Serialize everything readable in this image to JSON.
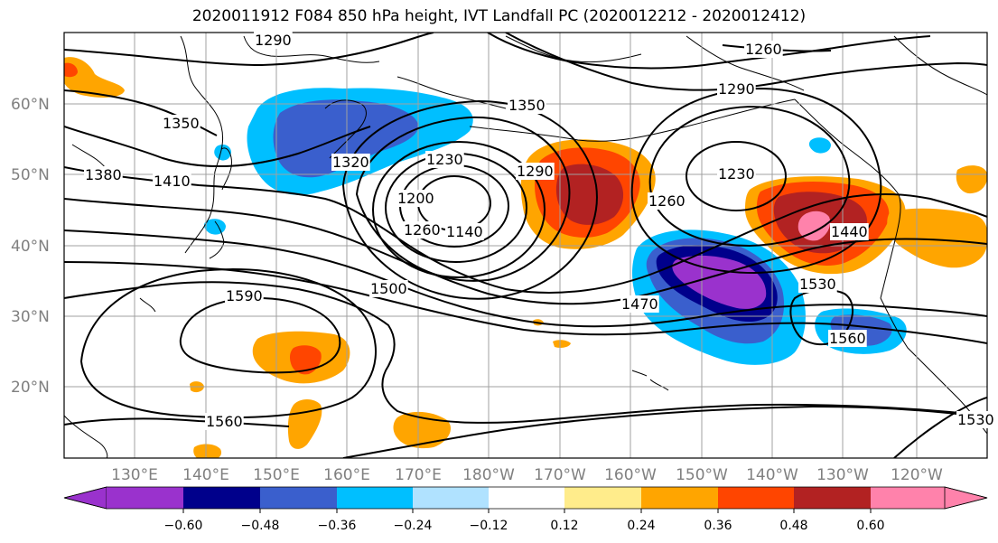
{
  "title": "2020011912 F084 850 hPa height, IVT Landfall PC (2020012212 - 2020012412)",
  "map": {
    "lat_labels": [
      "60°N",
      "50°N",
      "40°N",
      "30°N",
      "20°N"
    ],
    "lon_labels": [
      "130°E",
      "140°E",
      "150°E",
      "160°E",
      "170°E",
      "180°W",
      "170°W",
      "160°W",
      "150°W",
      "140°W",
      "130°W",
      "120°W"
    ],
    "contour_labels": [
      "1290",
      "1260",
      "1350",
      "1290",
      "1320",
      "1350",
      "1380",
      "1410",
      "1230",
      "1200",
      "1260",
      "1140",
      "1290",
      "1260",
      "1230",
      "1440",
      "1590",
      "1500",
      "1470",
      "1530",
      "1560",
      "1560",
      "1530"
    ]
  },
  "colorbar": {
    "ticks": [
      "−0.60",
      "−0.48",
      "−0.36",
      "−0.24",
      "−0.12",
      "0.12",
      "0.24",
      "0.36",
      "0.48",
      "0.60"
    ],
    "colors": [
      "#9a32cd",
      "#00008b",
      "#3a5fcd",
      "#00bfff",
      "#b0e2ff",
      "#ffffff",
      "#ffec8b",
      "#ffa500",
      "#ff4500",
      "#b22222",
      "#ff82ab"
    ]
  }
}
